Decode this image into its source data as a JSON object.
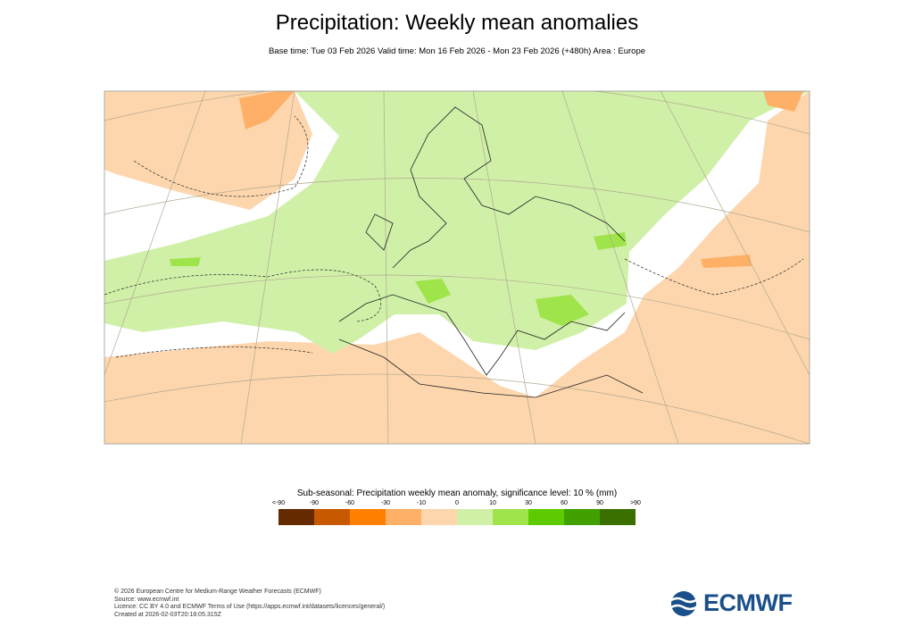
{
  "header": {
    "title": "Precipitation: Weekly mean anomalies",
    "subtitle": "Base time: Tue 03 Feb 2026 Valid time: Mon 16 Feb 2026 - Mon 23 Feb 2026 (+480h) Area : Europe"
  },
  "map": {
    "area": "Europe",
    "colors": {
      "dry": "#fdd6ad",
      "wet": "#d0f0a8",
      "wet_strong": "#a0e44c",
      "dry_strong": "#fdb066"
    }
  },
  "legend": {
    "title": "Sub-seasonal: Precipitation weekly mean anomaly, significance level: 10 % (mm)",
    "labels": [
      "<-90",
      "-90",
      "-60",
      "-30",
      "-10",
      "0",
      "10",
      "30",
      "60",
      "90",
      ">90"
    ],
    "colors": [
      "#662a00",
      "#c75a00",
      "#ff8000",
      "#fdb066",
      "#fdd6ad",
      "#d0f0a8",
      "#a0e44c",
      "#5ccc00",
      "#40a000",
      "#3a7000"
    ]
  },
  "footer": {
    "lines": [
      "© 2026 European Centre for Medium-Range Weather Forecasts (ECMWF)",
      "Source: www.ecmwf.int",
      "Licence: CC BY 4.0 and ECMWF Terms of Use (https://apps.ecmwf.int/datasets/licences/general/)",
      "Created at 2026-02-03T20:18:05.315Z"
    ],
    "logo_text": "ECMWF"
  }
}
